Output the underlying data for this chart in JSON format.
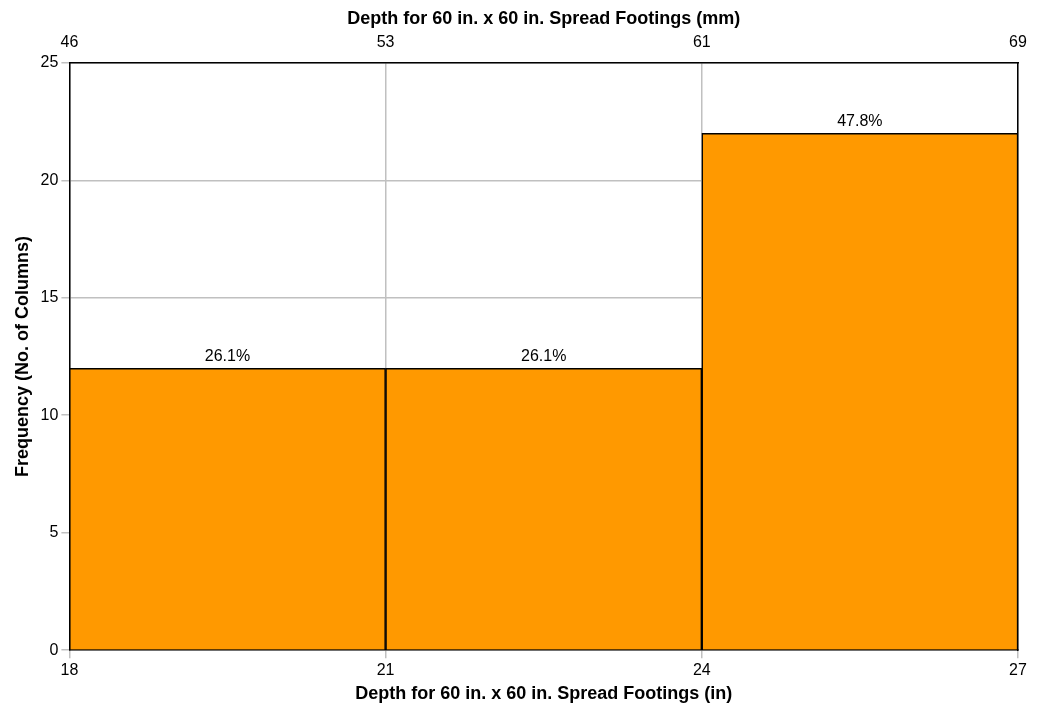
{
  "chart_data": {
    "type": "histogram",
    "bins": [
      18,
      21,
      24,
      27
    ],
    "values": [
      12,
      12,
      22
    ],
    "color": "#ff9900",
    "annotations": [
      {
        "text": "26.1%",
        "x": 19.5,
        "y": 12
      },
      {
        "text": "26.1%",
        "x": 22.5,
        "y": 12
      },
      {
        "text": "47.8%",
        "x": 25.5,
        "y": 22
      }
    ],
    "xlabel": "Depth for 60 in. x 60 in. Spread Footings (in)",
    "x2label": "Depth for 60 in. x 60 in. Spread Footings (mm)",
    "ylabel": "Frequency (No. of Columns)",
    "xlim": [
      18,
      27
    ],
    "xticks": [
      18,
      21,
      24,
      27
    ],
    "x2lim": [
      45.72,
      68.58
    ],
    "x2ticks": [
      {
        "value": 45.72,
        "label": "46"
      },
      {
        "value": 53.34,
        "label": "53"
      },
      {
        "value": 60.96,
        "label": "61"
      },
      {
        "value": 68.58,
        "label": "69"
      }
    ],
    "ylim": [
      0,
      25
    ],
    "yticks": [
      0,
      5,
      10,
      15,
      20,
      25
    ],
    "grid": true,
    "legend": false
  }
}
